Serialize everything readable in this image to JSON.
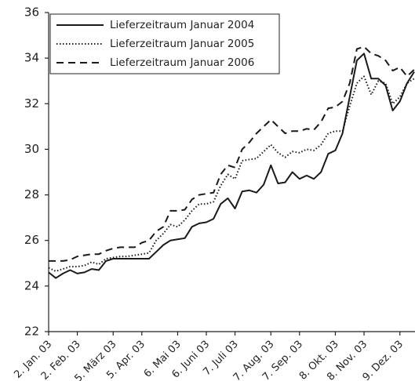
{
  "chart_data": {
    "type": "line",
    "categories": [
      "2. Jan. 03",
      null,
      null,
      null,
      "2. Feb. 03",
      null,
      null,
      null,
      null,
      "5. März 03",
      null,
      null,
      null,
      "5. Apr. 03",
      null,
      null,
      null,
      null,
      "6. Mai 03",
      null,
      null,
      null,
      "6. Juni 03",
      null,
      null,
      null,
      "7. Juli 03",
      null,
      null,
      null,
      null,
      "7. Aug. 03",
      null,
      null,
      null,
      "7. Sep. 03",
      null,
      null,
      null,
      null,
      "8. Okt. 03",
      null,
      null,
      null,
      "8. Nov. 03",
      null,
      null,
      null,
      null,
      "9. Dez. 03",
      null,
      null
    ],
    "series": [
      {
        "name": "Lieferzeitraum Januar 2004",
        "color": "#1a1a1a",
        "style": "solid",
        "values": [
          24.6,
          24.35,
          24.55,
          24.7,
          24.55,
          24.6,
          24.75,
          24.7,
          25.1,
          25.2,
          25.2,
          25.2,
          25.2,
          25.2,
          25.2,
          25.5,
          25.8,
          26.0,
          26.05,
          26.1,
          26.6,
          26.75,
          26.8,
          26.95,
          27.6,
          27.85,
          27.4,
          28.15,
          28.2,
          28.1,
          28.45,
          29.3,
          28.5,
          28.55,
          29.0,
          28.7,
          28.85,
          28.7,
          29.0,
          29.8,
          29.95,
          30.7,
          32.3,
          33.9,
          34.2,
          33.1,
          33.1,
          32.8,
          31.7,
          32.1,
          32.9,
          33.4
        ]
      },
      {
        "name": "Lieferzeitraum Januar 2005",
        "color": "#1a1a1a",
        "style": "dotted",
        "values": [
          24.8,
          24.65,
          24.75,
          24.85,
          24.85,
          24.9,
          25.05,
          24.95,
          25.2,
          25.25,
          25.3,
          25.3,
          25.35,
          25.4,
          25.45,
          26.0,
          26.3,
          26.7,
          26.6,
          26.9,
          27.3,
          27.6,
          27.6,
          27.7,
          28.4,
          28.9,
          28.7,
          29.5,
          29.55,
          29.6,
          29.9,
          30.2,
          29.85,
          29.65,
          29.9,
          29.85,
          30.0,
          29.95,
          30.2,
          30.7,
          30.8,
          30.8,
          31.9,
          32.9,
          33.2,
          32.4,
          33.0,
          32.9,
          32.0,
          32.3,
          32.9,
          33.1
        ]
      },
      {
        "name": "Lieferzeitraum Januar 2006",
        "color": "#1a1a1a",
        "style": "dashed",
        "values": [
          25.1,
          25.1,
          25.1,
          25.15,
          25.3,
          25.35,
          25.4,
          25.4,
          25.55,
          25.65,
          25.7,
          25.7,
          25.7,
          25.9,
          26.0,
          26.4,
          26.6,
          27.3,
          27.3,
          27.35,
          27.8,
          28.0,
          28.05,
          28.1,
          28.9,
          29.3,
          29.2,
          30.0,
          30.3,
          30.7,
          31.0,
          31.3,
          31.0,
          30.7,
          30.8,
          30.8,
          30.9,
          30.85,
          31.2,
          31.8,
          31.85,
          32.1,
          32.9,
          34.4,
          34.5,
          34.2,
          34.1,
          33.9,
          33.45,
          33.6,
          33.2,
          33.5
        ]
      }
    ],
    "ylim": [
      22,
      36
    ],
    "yticks": [
      22,
      24,
      26,
      28,
      30,
      32,
      34,
      36
    ],
    "grid": false,
    "legend": "top-left"
  }
}
